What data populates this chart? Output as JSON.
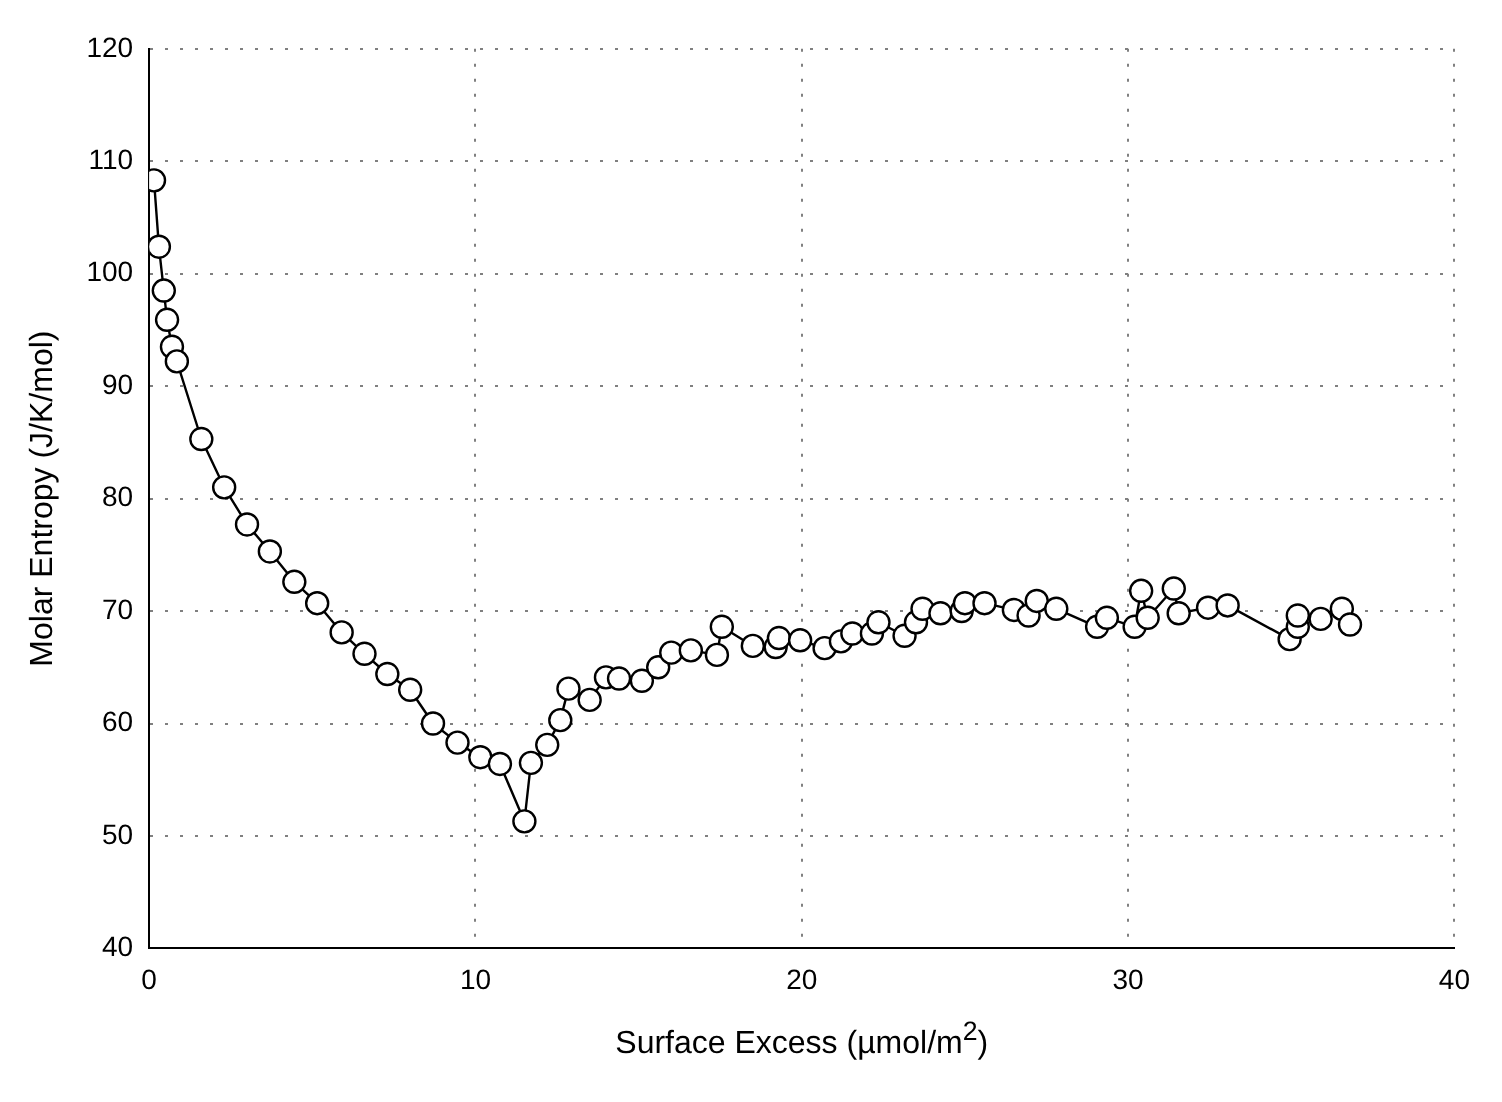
{
  "chart_data": {
    "type": "line",
    "xlabel": "Surface Excess (µmol/m$^{2}$)",
    "ylabel": "Molar Entropy (J/K/mol)",
    "xlim": [
      0,
      40
    ],
    "xticks": [
      0,
      10,
      20,
      30,
      40
    ],
    "ylim": [
      40,
      120
    ],
    "yticks": [
      40,
      50,
      60,
      70,
      80,
      90,
      100,
      110,
      120
    ],
    "grid": true,
    "marker": "circle",
    "line_style": "solid",
    "legend": false,
    "series": [
      {
        "color": "#000000",
        "x": [
          0.15,
          0.3,
          0.45,
          0.55,
          0.7,
          0.85,
          1.6,
          2.3,
          3.0,
          3.7,
          4.45,
          5.15,
          5.9,
          6.6,
          7.3,
          8.0,
          8.7,
          9.45,
          10.15,
          10.75,
          11.5,
          11.7,
          12.2,
          12.6,
          12.85,
          13.5,
          14.0,
          14.4,
          15.1,
          15.6,
          16.0,
          16.6,
          17.4,
          17.55,
          18.5,
          19.2,
          19.3,
          19.95,
          20.7,
          21.2,
          21.55,
          22.15,
          22.35,
          23.15,
          23.5,
          23.7,
          24.25,
          24.9,
          25.0,
          25.6,
          26.5,
          26.95,
          27.2,
          27.8,
          29.05,
          29.35,
          30.2,
          30.4,
          30.6,
          31.4,
          31.55,
          32.45,
          33.05,
          34.95,
          35.2,
          35.2,
          35.9,
          36.55,
          36.8
        ],
        "values": [
          108.3,
          102.4,
          98.5,
          95.9,
          93.5,
          92.2,
          85.3,
          81.0,
          77.7,
          75.3,
          72.6,
          70.7,
          68.1,
          66.2,
          64.4,
          63.0,
          60.0,
          58.3,
          57.0,
          56.4,
          51.3,
          56.5,
          58.1,
          60.3,
          63.1,
          62.1,
          64.1,
          64.0,
          63.8,
          65.0,
          66.3,
          66.5,
          66.1,
          68.6,
          66.9,
          66.8,
          67.6,
          67.4,
          66.7,
          67.3,
          68.0,
          68.0,
          69.0,
          67.8,
          69.0,
          70.2,
          69.8,
          70.0,
          70.7,
          70.7,
          70.1,
          69.6,
          70.9,
          70.2,
          68.6,
          69.4,
          68.6,
          71.8,
          69.4,
          72.0,
          69.8,
          70.3,
          70.5,
          67.5,
          68.6,
          69.6,
          69.3,
          70.2,
          68.8
        ]
      }
    ]
  }
}
